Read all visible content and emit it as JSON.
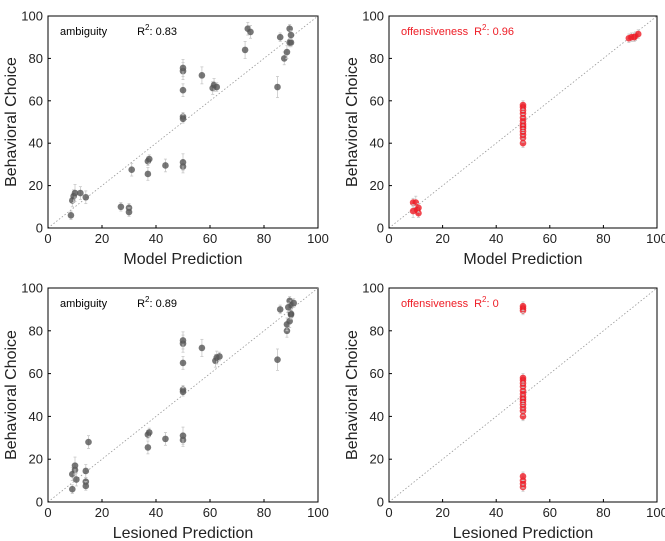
{
  "chart_data": [
    {
      "type": "scatter",
      "xlabel": "Model Prediction",
      "ylabel": "Behavioral Choice",
      "annotation": {
        "label": "ambiguity",
        "r2_label": "R",
        "r2_sup": "2",
        "r2_value": ": 0.83"
      },
      "xlim": [
        0,
        100
      ],
      "ylim": [
        0,
        100
      ],
      "xticks": [
        "0",
        "20",
        "40",
        "60",
        "80",
        "100"
      ],
      "yticks": [
        "0",
        "20",
        "40",
        "60",
        "80",
        "100"
      ],
      "reference_line": "y = x (dotted)",
      "marker_color": "#555555",
      "points": [
        {
          "x": 8.5,
          "y": 6,
          "e": 2
        },
        {
          "x": 9,
          "y": 13,
          "e": 3
        },
        {
          "x": 9.5,
          "y": 15,
          "e": 3
        },
        {
          "x": 10,
          "y": 16.5,
          "e": 4
        },
        {
          "x": 12,
          "y": 16.5,
          "e": 3
        },
        {
          "x": 14,
          "y": 14.5,
          "e": 3
        },
        {
          "x": 27,
          "y": 10,
          "e": 2
        },
        {
          "x": 30,
          "y": 9.5,
          "e": 2
        },
        {
          "x": 30,
          "y": 7.5,
          "e": 2
        },
        {
          "x": 31,
          "y": 27.5,
          "e": 3
        },
        {
          "x": 37,
          "y": 25.5,
          "e": 3
        },
        {
          "x": 37,
          "y": 31.5,
          "e": 2
        },
        {
          "x": 37.5,
          "y": 32.5,
          "e": 2
        },
        {
          "x": 43.5,
          "y": 29.5,
          "e": 3
        },
        {
          "x": 50,
          "y": 29,
          "e": 3
        },
        {
          "x": 50,
          "y": 31,
          "e": 4
        },
        {
          "x": 50,
          "y": 52.5,
          "e": 2
        },
        {
          "x": 50,
          "y": 51.5,
          "e": 2
        },
        {
          "x": 50,
          "y": 65,
          "e": 3
        },
        {
          "x": 50,
          "y": 74,
          "e": 4
        },
        {
          "x": 50,
          "y": 75.5,
          "e": 4
        },
        {
          "x": 57,
          "y": 72,
          "e": 4
        },
        {
          "x": 61,
          "y": 66,
          "e": 3
        },
        {
          "x": 61.5,
          "y": 67.5,
          "e": 3
        },
        {
          "x": 62.5,
          "y": 66.5,
          "e": 2
        },
        {
          "x": 73,
          "y": 84,
          "e": 4
        },
        {
          "x": 74,
          "y": 94,
          "e": 3
        },
        {
          "x": 75,
          "y": 92.5,
          "e": 3
        },
        {
          "x": 85,
          "y": 66.5,
          "e": 5
        },
        {
          "x": 86,
          "y": 90,
          "e": 2
        },
        {
          "x": 87.5,
          "y": 80,
          "e": 3
        },
        {
          "x": 88.5,
          "y": 83,
          "e": 3
        },
        {
          "x": 89.5,
          "y": 87.5,
          "e": 2
        },
        {
          "x": 90,
          "y": 87.5,
          "e": 2
        },
        {
          "x": 89.5,
          "y": 94,
          "e": 2
        },
        {
          "x": 90,
          "y": 91,
          "e": 2
        }
      ]
    },
    {
      "type": "scatter",
      "xlabel": "Model Prediction",
      "ylabel": "Behavioral Choice",
      "annotation": {
        "label": "offensiveness",
        "r2_label": "R",
        "r2_sup": "2",
        "r2_value": ": 0.96"
      },
      "xlim": [
        0,
        100
      ],
      "ylim": [
        0,
        100
      ],
      "xticks": [
        "0",
        "20",
        "40",
        "60",
        "80",
        "100"
      ],
      "yticks": [
        "0",
        "20",
        "40",
        "60",
        "80",
        "100"
      ],
      "reference_line": "y = x (dotted)",
      "marker_color": "#ee1c25",
      "points": [
        {
          "x": 9,
          "y": 12,
          "e": 2
        },
        {
          "x": 10,
          "y": 12,
          "e": 3
        },
        {
          "x": 9,
          "y": 8,
          "e": 3
        },
        {
          "x": 10.5,
          "y": 8.5,
          "e": 2
        },
        {
          "x": 11,
          "y": 7,
          "e": 2
        },
        {
          "x": 11,
          "y": 9.5,
          "e": 2
        },
        {
          "x": 50,
          "y": 40,
          "e": 2
        },
        {
          "x": 50,
          "y": 42.5,
          "e": 2
        },
        {
          "x": 50,
          "y": 44,
          "e": 2
        },
        {
          "x": 50,
          "y": 45.5,
          "e": 2
        },
        {
          "x": 50,
          "y": 47,
          "e": 2
        },
        {
          "x": 50,
          "y": 48,
          "e": 2
        },
        {
          "x": 50,
          "y": 49,
          "e": 2
        },
        {
          "x": 50,
          "y": 50.5,
          "e": 2
        },
        {
          "x": 50,
          "y": 52,
          "e": 2
        },
        {
          "x": 50,
          "y": 54,
          "e": 2
        },
        {
          "x": 50,
          "y": 55.5,
          "e": 2
        },
        {
          "x": 50,
          "y": 57,
          "e": 2
        },
        {
          "x": 50,
          "y": 58,
          "e": 2
        },
        {
          "x": 89.5,
          "y": 89.5,
          "e": 2
        },
        {
          "x": 90.5,
          "y": 90,
          "e": 2
        },
        {
          "x": 92,
          "y": 90.5,
          "e": 2
        },
        {
          "x": 93,
          "y": 91.5,
          "e": 2
        },
        {
          "x": 91.5,
          "y": 90,
          "e": 2
        }
      ]
    },
    {
      "type": "scatter",
      "xlabel": "Lesioned Prediction",
      "ylabel": "Behavioral Choice",
      "annotation": {
        "label": "ambiguity",
        "r2_label": "R",
        "r2_sup": "2",
        "r2_value": ": 0.89"
      },
      "xlim": [
        0,
        100
      ],
      "ylim": [
        0,
        100
      ],
      "xticks": [
        "0",
        "20",
        "40",
        "60",
        "80",
        "100"
      ],
      "yticks": [
        "0",
        "20",
        "40",
        "60",
        "80",
        "100"
      ],
      "reference_line": "y = x (dotted)",
      "marker_color": "#555555",
      "points": [
        {
          "x": 9,
          "y": 6,
          "e": 2
        },
        {
          "x": 9,
          "y": 13,
          "e": 3
        },
        {
          "x": 10,
          "y": 15,
          "e": 3
        },
        {
          "x": 10,
          "y": 17,
          "e": 4
        },
        {
          "x": 10.5,
          "y": 10.5,
          "e": 3
        },
        {
          "x": 14,
          "y": 14.5,
          "e": 3
        },
        {
          "x": 14,
          "y": 9.5,
          "e": 2
        },
        {
          "x": 14,
          "y": 7.5,
          "e": 2
        },
        {
          "x": 15,
          "y": 28,
          "e": 3
        },
        {
          "x": 37,
          "y": 25.5,
          "e": 3
        },
        {
          "x": 37,
          "y": 31.5,
          "e": 2
        },
        {
          "x": 37.5,
          "y": 32.5,
          "e": 2
        },
        {
          "x": 43.5,
          "y": 29.5,
          "e": 3
        },
        {
          "x": 50,
          "y": 29,
          "e": 3
        },
        {
          "x": 50,
          "y": 31,
          "e": 4
        },
        {
          "x": 50,
          "y": 52.5,
          "e": 2
        },
        {
          "x": 50,
          "y": 51.5,
          "e": 2
        },
        {
          "x": 50,
          "y": 65,
          "e": 3
        },
        {
          "x": 50,
          "y": 74,
          "e": 4
        },
        {
          "x": 50,
          "y": 75.5,
          "e": 4
        },
        {
          "x": 57,
          "y": 72,
          "e": 4
        },
        {
          "x": 62,
          "y": 66,
          "e": 3
        },
        {
          "x": 62.5,
          "y": 67.5,
          "e": 3
        },
        {
          "x": 63.5,
          "y": 68,
          "e": 2
        },
        {
          "x": 85,
          "y": 66.5,
          "e": 5
        },
        {
          "x": 86,
          "y": 90,
          "e": 2
        },
        {
          "x": 88.5,
          "y": 80,
          "e": 3
        },
        {
          "x": 88.5,
          "y": 83,
          "e": 3
        },
        {
          "x": 89.5,
          "y": 84.5,
          "e": 3
        },
        {
          "x": 90,
          "y": 87.5,
          "e": 2
        },
        {
          "x": 90,
          "y": 88,
          "e": 2
        },
        {
          "x": 89.5,
          "y": 94,
          "e": 2
        },
        {
          "x": 90,
          "y": 92,
          "e": 2
        },
        {
          "x": 91,
          "y": 93,
          "e": 2
        },
        {
          "x": 89,
          "y": 91,
          "e": 2
        }
      ]
    },
    {
      "type": "scatter",
      "xlabel": "Lesioned Prediction",
      "ylabel": "Behavioral Choice",
      "annotation": {
        "label": "offensiveness",
        "r2_label": "R",
        "r2_sup": "2",
        "r2_value": ": 0"
      },
      "xlim": [
        0,
        100
      ],
      "ylim": [
        0,
        100
      ],
      "xticks": [
        "0",
        "20",
        "40",
        "60",
        "80",
        "100"
      ],
      "yticks": [
        "0",
        "20",
        "40",
        "60",
        "80",
        "100"
      ],
      "reference_line": "y = x (dotted)",
      "marker_color": "#ee1c25",
      "points": [
        {
          "x": 50,
          "y": 7,
          "e": 2
        },
        {
          "x": 50,
          "y": 8.5,
          "e": 2
        },
        {
          "x": 50,
          "y": 10,
          "e": 2
        },
        {
          "x": 50,
          "y": 12,
          "e": 2
        },
        {
          "x": 50,
          "y": 40,
          "e": 2
        },
        {
          "x": 50,
          "y": 42.5,
          "e": 2
        },
        {
          "x": 50,
          "y": 44,
          "e": 2
        },
        {
          "x": 50,
          "y": 45.5,
          "e": 2
        },
        {
          "x": 50,
          "y": 47,
          "e": 2
        },
        {
          "x": 50,
          "y": 48,
          "e": 2
        },
        {
          "x": 50,
          "y": 49,
          "e": 2
        },
        {
          "x": 50,
          "y": 50.5,
          "e": 2
        },
        {
          "x": 50,
          "y": 52,
          "e": 2
        },
        {
          "x": 50,
          "y": 54,
          "e": 2
        },
        {
          "x": 50,
          "y": 55.5,
          "e": 2
        },
        {
          "x": 50,
          "y": 57,
          "e": 2
        },
        {
          "x": 50,
          "y": 58,
          "e": 2
        },
        {
          "x": 50,
          "y": 89.5,
          "e": 2
        },
        {
          "x": 50,
          "y": 90.5,
          "e": 2
        },
        {
          "x": 50,
          "y": 91.5,
          "e": 2
        }
      ]
    }
  ]
}
